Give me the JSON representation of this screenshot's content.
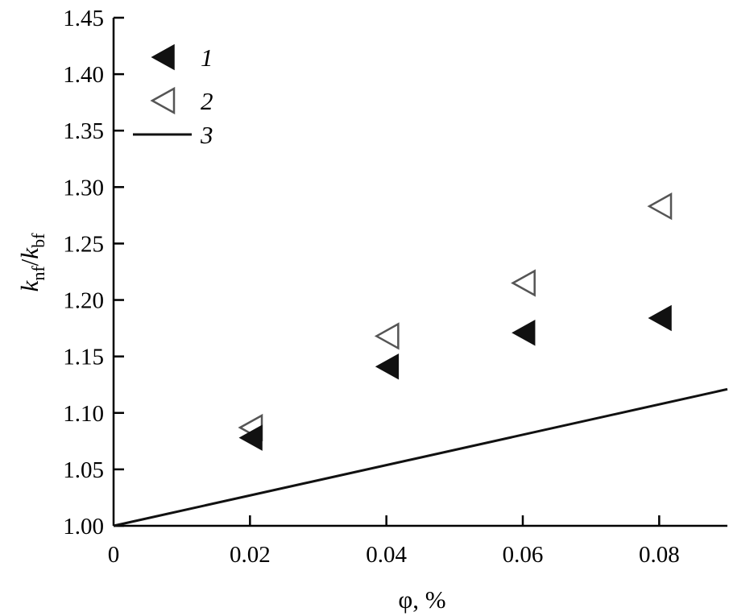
{
  "chart_data": {
    "type": "scatter",
    "title": "",
    "xlabel": "φ, %",
    "ylabel": {
      "main_1": "k",
      "sub_1": "nf",
      "slash": "/",
      "main_2": "k",
      "sub_2": "bf"
    },
    "xlim": [
      0,
      0.09
    ],
    "ylim": [
      1.0,
      1.45
    ],
    "x_ticks": [
      "0",
      "0.02",
      "0.04",
      "0.06",
      "0.08"
    ],
    "x_tick_values": [
      0,
      0.02,
      0.04,
      0.06,
      0.08
    ],
    "y_ticks": [
      "1.00",
      "1.05",
      "1.10",
      "1.15",
      "1.20",
      "1.25",
      "1.30",
      "1.35",
      "1.40",
      "1.45"
    ],
    "y_tick_values": [
      1.0,
      1.05,
      1.1,
      1.15,
      1.2,
      1.25,
      1.3,
      1.35,
      1.4,
      1.45
    ],
    "legend_position": "top-left",
    "grid": false,
    "series": [
      {
        "name": "1",
        "marker": "filled-left-triangle",
        "color": "#111111",
        "x": [
          0.0202,
          0.0402,
          0.0602,
          0.0802
        ],
        "y": [
          1.078,
          1.141,
          1.171,
          1.184
        ]
      },
      {
        "name": "2",
        "marker": "open-left-triangle",
        "color": "#555555",
        "x": [
          0.0202,
          0.0402,
          0.0602,
          0.0802
        ],
        "y": [
          1.087,
          1.168,
          1.215,
          1.283
        ]
      },
      {
        "name": "3",
        "marker": "line",
        "color": "#111111",
        "x": [
          0,
          0.09
        ],
        "y": [
          1.0,
          1.121
        ]
      }
    ]
  }
}
